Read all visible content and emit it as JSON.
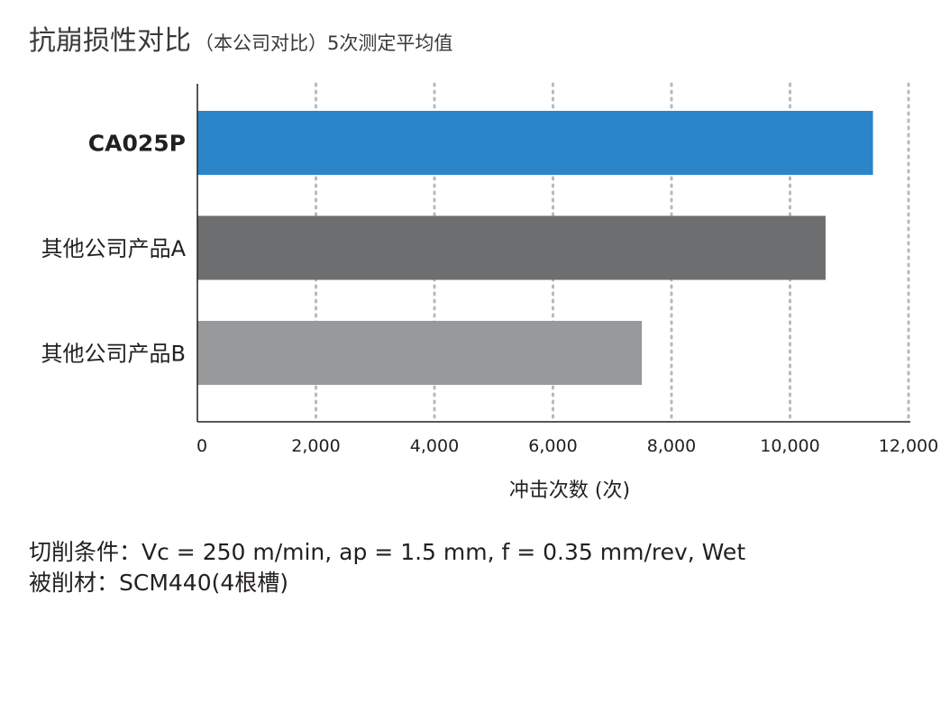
{
  "title": {
    "main": "抗崩损性对比",
    "sub": "（本公司对比）5次测定平均值"
  },
  "chart_data": {
    "type": "bar",
    "orientation": "horizontal",
    "categories": [
      "CA025P",
      "其他公司产品A",
      "其他公司产品B"
    ],
    "values": [
      11400,
      10600,
      7500
    ],
    "bar_colors": [
      "#2a86c8",
      "#6d6e70",
      "#98999b"
    ],
    "bold_categories": [
      "CA025P"
    ],
    "xlabel": "冲击次数 (次)",
    "xlim": [
      0,
      12000
    ],
    "xticks": [
      "0",
      "2,000",
      "4,000",
      "6,000",
      "8,000",
      "10,000",
      "12,000"
    ],
    "grid": "vertical-dotted"
  },
  "conditions": {
    "line1": "切削条件：Vc = 250 m/min, ap = 1.5 mm, f = 0.35 mm/rev, Wet",
    "line2": "被削材：SCM440(4根槽)"
  }
}
